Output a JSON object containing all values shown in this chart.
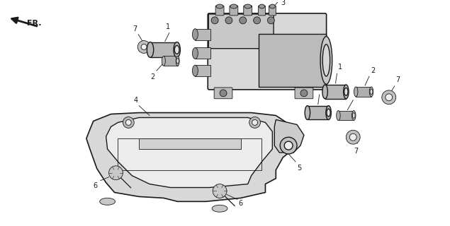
{
  "bg_color": "#ffffff",
  "fg_color": "#1a1a1a",
  "figsize": [
    6.35,
    3.2
  ],
  "dpi": 100,
  "lw_main": 1.0,
  "lw_thin": 0.6,
  "component_gray": "#b8b8b8",
  "shadow_gray": "#888888",
  "light_gray": "#d8d8d8",
  "dark_gray": "#666666"
}
